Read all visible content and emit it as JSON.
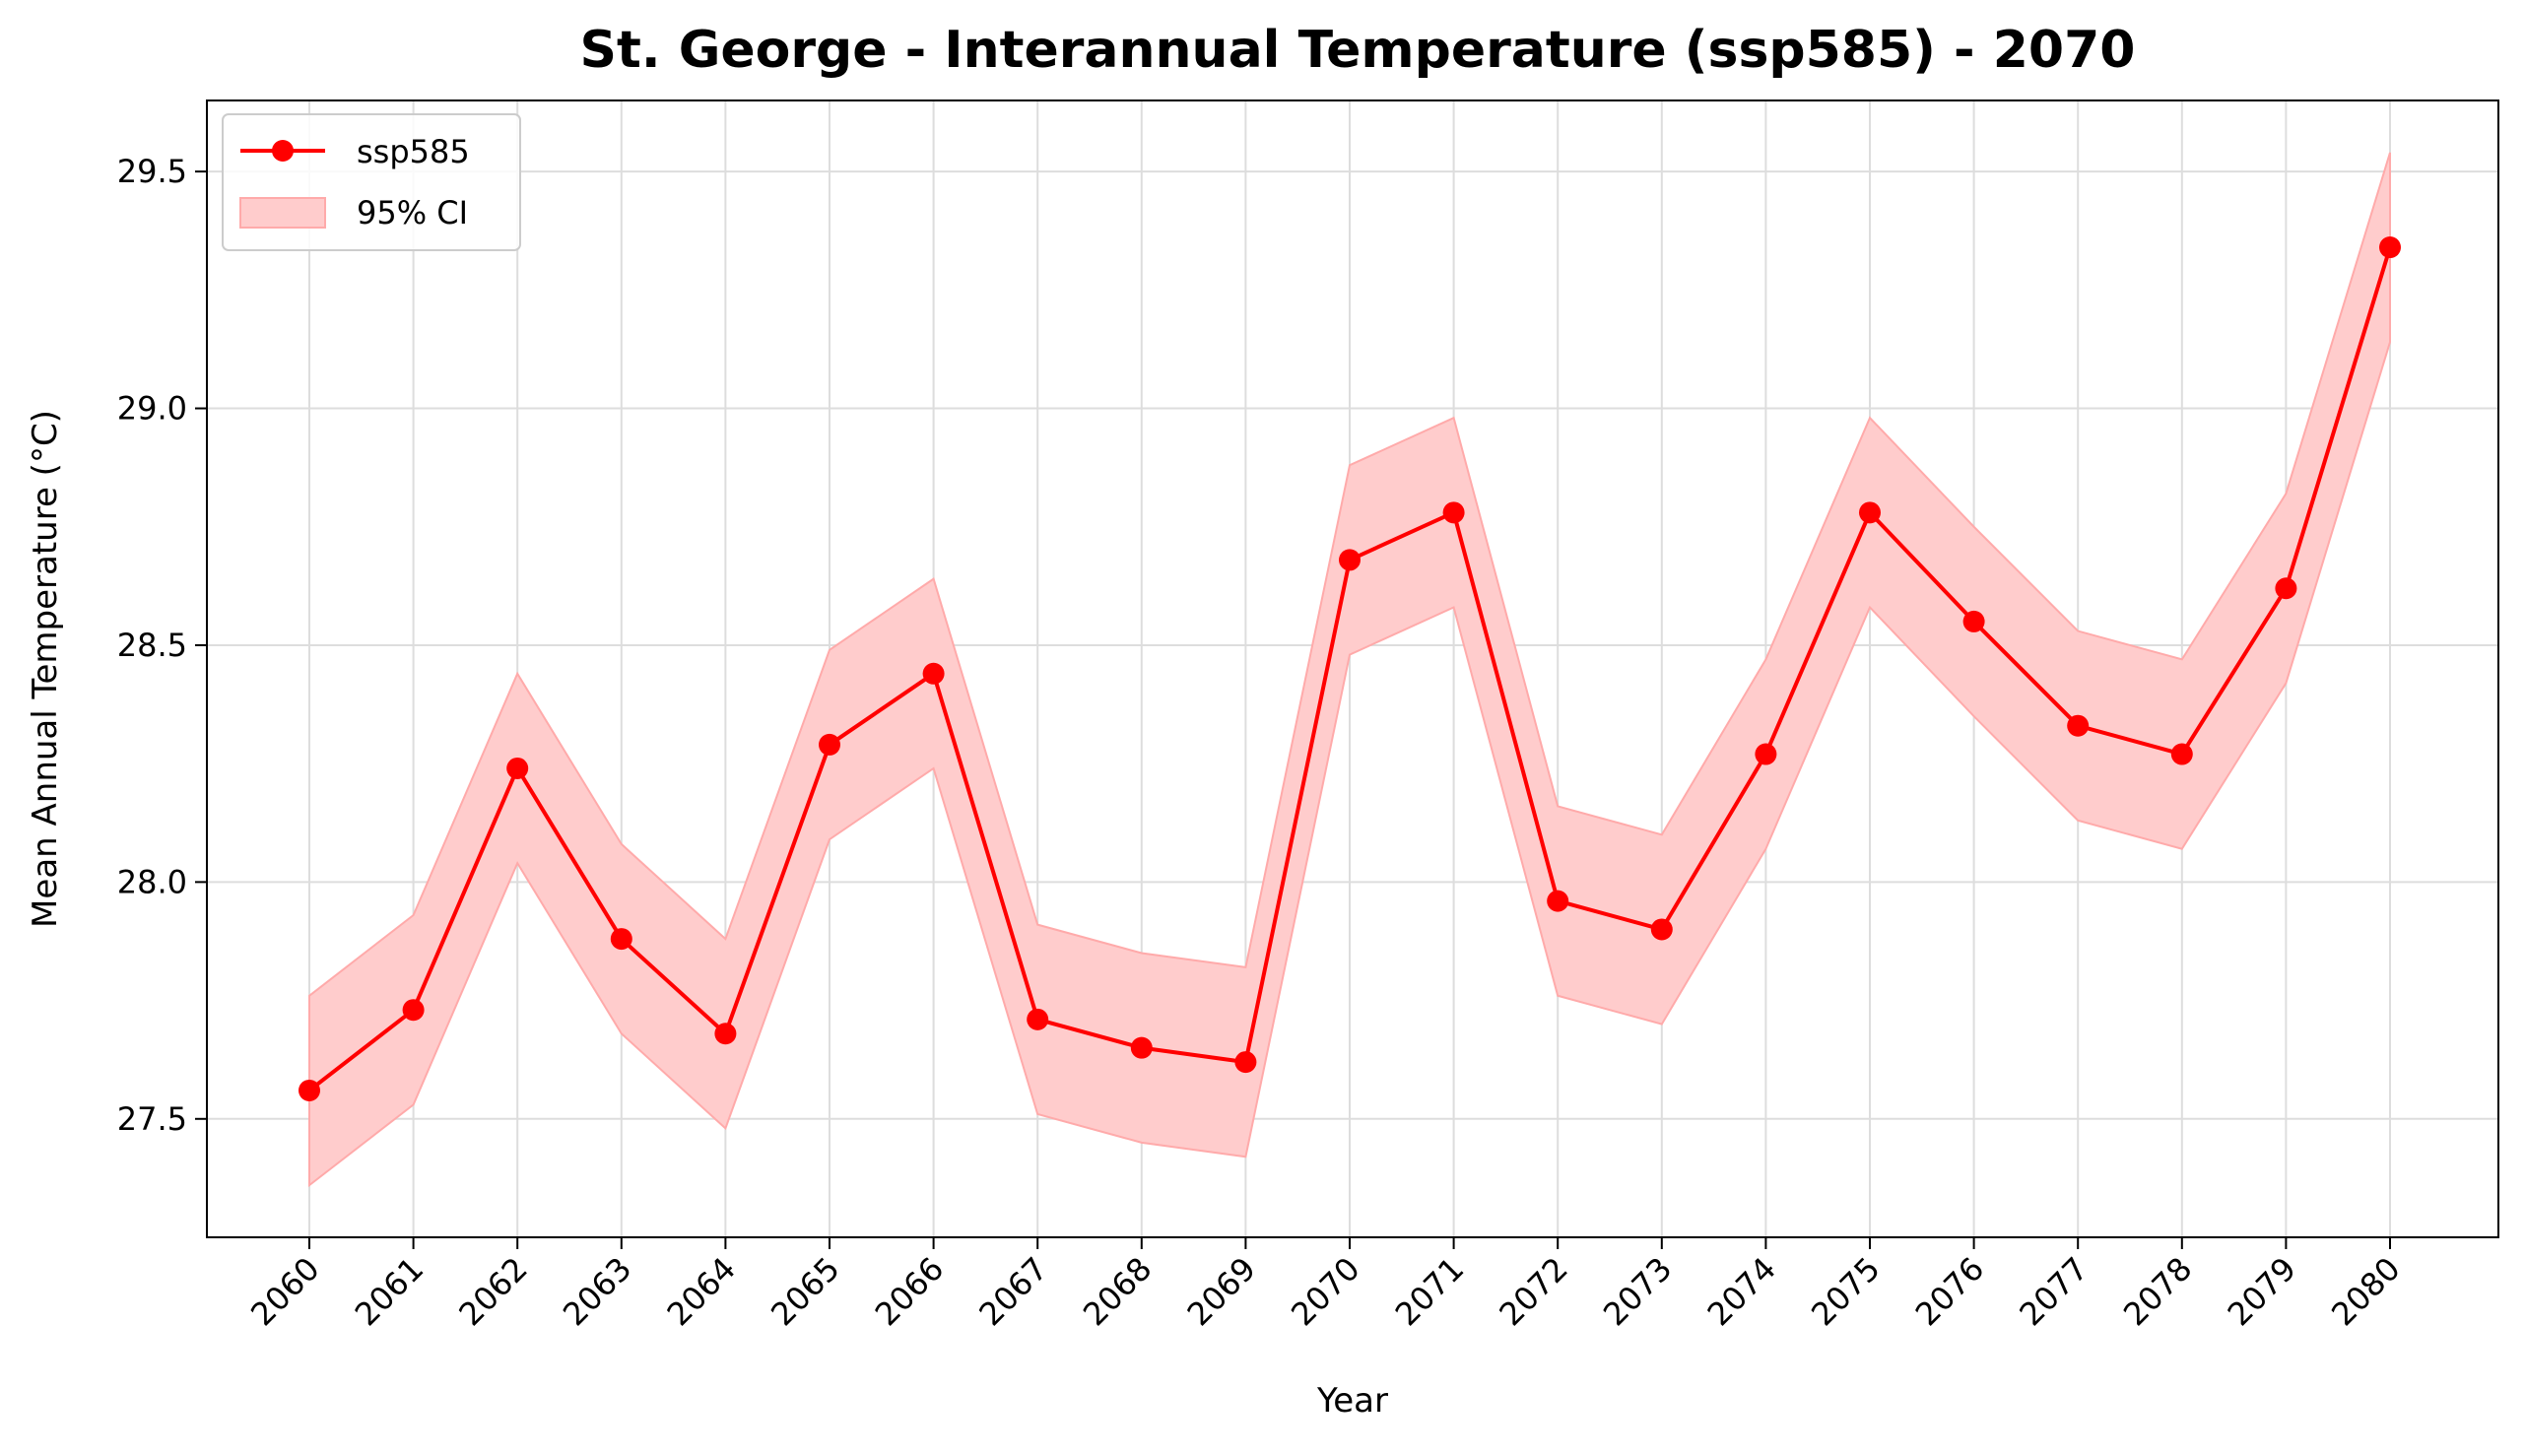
{
  "chart_data": {
    "type": "line",
    "title": "St. George - Interannual Temperature (ssp585) - 2070",
    "xlabel": "Year",
    "ylabel": "Mean Annual Temperature (°C)",
    "x": [
      2060,
      2061,
      2062,
      2063,
      2064,
      2065,
      2066,
      2067,
      2068,
      2069,
      2070,
      2071,
      2072,
      2073,
      2074,
      2075,
      2076,
      2077,
      2078,
      2079,
      2080
    ],
    "x_tick_labels": [
      "2060",
      "2061",
      "2062",
      "2063",
      "2064",
      "2065",
      "2066",
      "2067",
      "2068",
      "2069",
      "2070",
      "2071",
      "2072",
      "2073",
      "2074",
      "2075",
      "2076",
      "2077",
      "2078",
      "2079",
      "2080"
    ],
    "y_ticks": [
      27.5,
      28.0,
      28.5,
      29.0,
      29.5
    ],
    "y_tick_labels": [
      "27.5",
      "28.0",
      "28.5",
      "29.0",
      "29.5"
    ],
    "ylim": [
      27.25,
      29.65
    ],
    "grid": true,
    "legend_position": "top-left",
    "series": [
      {
        "name": "ssp585",
        "color": "#ff0000",
        "values": [
          27.56,
          27.73,
          28.24,
          27.88,
          27.68,
          28.29,
          28.44,
          27.71,
          27.65,
          27.62,
          28.68,
          28.78,
          27.96,
          27.9,
          28.27,
          28.78,
          28.55,
          28.33,
          28.27,
          28.62,
          29.34
        ]
      }
    ],
    "confidence_band": {
      "name": "95% CI",
      "color": "#ffcccc",
      "edge_color": "#ffaaaa",
      "lower": [
        27.36,
        27.53,
        28.04,
        27.68,
        27.48,
        28.09,
        28.24,
        27.51,
        27.45,
        27.42,
        28.48,
        28.58,
        27.76,
        27.7,
        28.07,
        28.58,
        28.35,
        28.13,
        28.07,
        28.42,
        29.14
      ],
      "upper": [
        27.76,
        27.93,
        28.44,
        28.08,
        27.88,
        28.49,
        28.64,
        27.91,
        27.85,
        27.82,
        28.88,
        28.98,
        28.16,
        28.1,
        28.47,
        28.98,
        28.75,
        28.53,
        28.47,
        28.82,
        29.54
      ]
    }
  }
}
